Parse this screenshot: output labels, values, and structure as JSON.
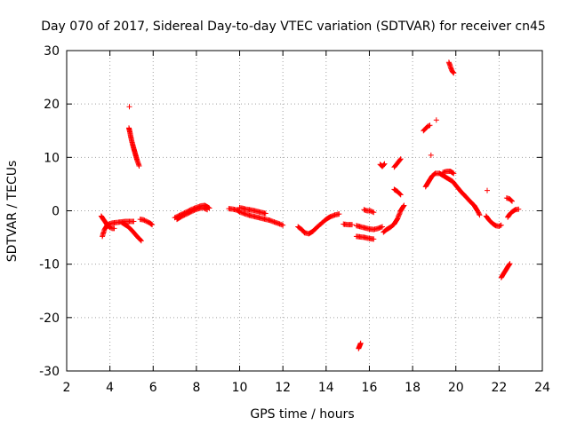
{
  "chart_data": {
    "type": "scatter",
    "title": "Day 070 of 2017, Sidereal Day-to-day VTEC variation (SDTVAR) for receiver cn45",
    "xlabel": "GPS time / hours",
    "ylabel": "SDTVAR / TECUs",
    "xlim": [
      2,
      24
    ],
    "ylim": [
      -30,
      30
    ],
    "xticks": [
      2,
      4,
      6,
      8,
      10,
      12,
      14,
      16,
      18,
      20,
      22,
      24
    ],
    "yticks": [
      -30,
      -20,
      -10,
      0,
      10,
      20,
      30
    ],
    "grid": true,
    "marker": "+",
    "color": "#ff0000",
    "segments": [
      [
        [
          3.65,
          -4.8
        ],
        [
          3.75,
          -3.5
        ],
        [
          3.85,
          -2.8
        ],
        [
          3.95,
          -2.5
        ],
        [
          4.1,
          -2.3
        ],
        [
          4.3,
          -2.2
        ],
        [
          4.5,
          -2.1
        ],
        [
          4.7,
          -2.0
        ],
        [
          4.9,
          -2.0
        ],
        [
          5.1,
          -2.0
        ]
      ],
      [
        [
          3.6,
          -1.0
        ],
        [
          3.7,
          -1.6
        ],
        [
          3.8,
          -2.2
        ],
        [
          3.9,
          -2.8
        ],
        [
          4.0,
          -3.1
        ],
        [
          4.1,
          -3.3
        ],
        [
          4.2,
          -3.3
        ]
      ],
      [
        [
          4.55,
          -2.2
        ],
        [
          4.7,
          -2.6
        ],
        [
          4.85,
          -3.0
        ],
        [
          5.0,
          -3.6
        ],
        [
          5.15,
          -4.3
        ],
        [
          5.3,
          -5.0
        ],
        [
          5.45,
          -5.6
        ]
      ],
      [
        [
          5.4,
          -1.6
        ],
        [
          5.55,
          -1.7
        ],
        [
          5.7,
          -2.0
        ],
        [
          5.85,
          -2.3
        ],
        [
          5.95,
          -2.6
        ]
      ],
      [
        [
          4.9,
          19.5
        ]
      ],
      [
        [
          4.88,
          15.5
        ],
        [
          4.92,
          14.8
        ],
        [
          4.96,
          14.0
        ],
        [
          5.0,
          13.2
        ],
        [
          5.05,
          12.4
        ],
        [
          5.1,
          11.7
        ],
        [
          5.15,
          11.0
        ],
        [
          5.2,
          10.3
        ],
        [
          5.25,
          9.6
        ],
        [
          5.3,
          9.0
        ],
        [
          5.35,
          8.4
        ]
      ],
      [
        [
          7.0,
          -1.3
        ],
        [
          7.2,
          -0.9
        ],
        [
          7.4,
          -0.5
        ],
        [
          7.6,
          -0.1
        ],
        [
          7.8,
          0.3
        ],
        [
          8.0,
          0.6
        ],
        [
          8.2,
          0.9
        ],
        [
          8.4,
          1.0
        ],
        [
          8.6,
          0.5
        ]
      ],
      [
        [
          7.1,
          -1.6
        ],
        [
          7.3,
          -1.1
        ],
        [
          7.5,
          -0.7
        ],
        [
          7.7,
          -0.3
        ],
        [
          7.9,
          0.1
        ],
        [
          8.1,
          0.4
        ],
        [
          8.3,
          0.6
        ],
        [
          8.5,
          0.2
        ]
      ],
      [
        [
          9.5,
          0.4
        ],
        [
          9.7,
          0.3
        ],
        [
          9.9,
          0.1
        ],
        [
          10.0,
          -0.2
        ],
        [
          10.2,
          -0.5
        ],
        [
          10.4,
          -0.8
        ],
        [
          10.6,
          -1.0
        ],
        [
          10.8,
          -1.2
        ],
        [
          11.0,
          -1.4
        ],
        [
          11.2,
          -1.6
        ],
        [
          11.4,
          -1.8
        ],
        [
          11.6,
          -2.1
        ],
        [
          11.8,
          -2.4
        ],
        [
          12.0,
          -2.7
        ]
      ],
      [
        [
          10.0,
          0.6
        ],
        [
          10.3,
          0.3
        ],
        [
          10.6,
          0.1
        ],
        [
          10.9,
          -0.2
        ],
        [
          11.2,
          -0.5
        ]
      ],
      [
        [
          12.7,
          -3.0
        ],
        [
          12.9,
          -3.6
        ],
        [
          13.0,
          -4.1
        ],
        [
          13.2,
          -4.3
        ],
        [
          13.4,
          -3.8
        ],
        [
          13.6,
          -3.0
        ],
        [
          13.8,
          -2.3
        ],
        [
          14.0,
          -1.6
        ],
        [
          14.2,
          -1.1
        ],
        [
          14.4,
          -0.8
        ],
        [
          14.6,
          -0.6
        ]
      ],
      [
        [
          14.8,
          -2.5
        ],
        [
          15.0,
          -2.6
        ],
        [
          15.2,
          -2.6
        ]
      ],
      [
        [
          15.5,
          -25.8
        ],
        [
          15.55,
          -25.3
        ],
        [
          15.6,
          -24.8
        ]
      ],
      [
        [
          15.4,
          -2.8
        ],
        [
          15.6,
          -3.0
        ],
        [
          15.8,
          -3.2
        ],
        [
          16.0,
          -3.4
        ],
        [
          16.2,
          -3.5
        ],
        [
          16.4,
          -3.3
        ],
        [
          16.6,
          -3.0
        ]
      ],
      [
        [
          15.4,
          -4.8
        ],
        [
          15.6,
          -4.9
        ],
        [
          15.8,
          -5.0
        ],
        [
          16.0,
          -5.2
        ],
        [
          16.2,
          -5.3
        ]
      ],
      [
        [
          15.75,
          0.2
        ],
        [
          15.9,
          0.0
        ],
        [
          16.05,
          0.0
        ],
        [
          16.2,
          -0.3
        ]
      ],
      [
        [
          16.5,
          8.7
        ],
        [
          16.6,
          8.3
        ],
        [
          16.7,
          8.8
        ]
      ],
      [
        [
          16.65,
          -4.0
        ],
        [
          16.8,
          -3.5
        ],
        [
          17.0,
          -3.0
        ],
        [
          17.15,
          -2.5
        ],
        [
          17.3,
          -1.5
        ],
        [
          17.45,
          0.0
        ],
        [
          17.6,
          1.0
        ]
      ],
      [
        [
          17.15,
          8.2
        ],
        [
          17.25,
          8.7
        ],
        [
          17.35,
          9.2
        ],
        [
          17.45,
          9.7
        ]
      ],
      [
        [
          17.15,
          4.0
        ],
        [
          17.3,
          3.6
        ],
        [
          17.45,
          3.0
        ]
      ],
      [
        [
          18.5,
          15.0
        ],
        [
          18.6,
          15.4
        ],
        [
          18.7,
          15.8
        ],
        [
          18.8,
          16.0
        ]
      ],
      [
        [
          19.1,
          17.0
        ]
      ],
      [
        [
          18.85,
          10.4
        ]
      ],
      [
        [
          18.6,
          4.5
        ],
        [
          18.75,
          5.5
        ],
        [
          18.9,
          6.5
        ],
        [
          19.05,
          7.0
        ],
        [
          19.25,
          7.0
        ],
        [
          19.45,
          6.5
        ],
        [
          19.65,
          6.0
        ],
        [
          19.85,
          5.5
        ],
        [
          20.05,
          4.5
        ],
        [
          20.25,
          3.5
        ],
        [
          20.45,
          2.7
        ],
        [
          20.65,
          1.8
        ],
        [
          20.85,
          1.0
        ],
        [
          21.0,
          0.0
        ],
        [
          21.1,
          -0.8
        ]
      ],
      [
        [
          19.4,
          7.2
        ],
        [
          19.6,
          7.4
        ],
        [
          19.75,
          7.4
        ],
        [
          19.9,
          7.0
        ]
      ],
      [
        [
          19.68,
          27.8
        ],
        [
          19.75,
          27.0
        ],
        [
          19.82,
          26.2
        ],
        [
          19.9,
          25.8
        ]
      ],
      [
        [
          21.45,
          3.8
        ]
      ],
      [
        [
          21.4,
          -1.0
        ],
        [
          21.55,
          -1.8
        ],
        [
          21.7,
          -2.4
        ],
        [
          21.85,
          -2.8
        ],
        [
          22.0,
          -2.9
        ],
        [
          22.1,
          -2.7
        ]
      ],
      [
        [
          22.1,
          -12.5
        ],
        [
          22.25,
          -11.5
        ],
        [
          22.4,
          -10.5
        ],
        [
          22.5,
          -9.9
        ]
      ],
      [
        [
          22.35,
          2.4
        ],
        [
          22.5,
          2.2
        ],
        [
          22.6,
          1.8
        ]
      ],
      [
        [
          22.4,
          -1.2
        ],
        [
          22.5,
          -0.6
        ],
        [
          22.6,
          -0.2
        ],
        [
          22.75,
          0.2
        ],
        [
          22.9,
          0.3
        ]
      ]
    ]
  }
}
